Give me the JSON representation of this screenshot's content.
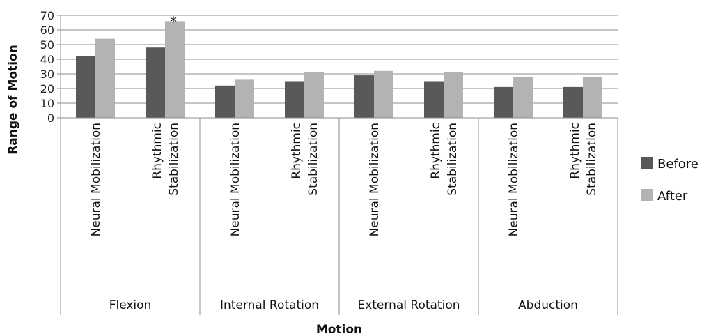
{
  "chart_data": {
    "type": "bar",
    "xlabel": "Motion",
    "ylabel": "Range of Motion",
    "ylim": [
      0,
      70
    ],
    "yticks": [
      0,
      10,
      20,
      30,
      40,
      50,
      60,
      70
    ],
    "grid": true,
    "legend_position": "right",
    "groups": [
      {
        "name": "Flexion",
        "categories": [
          "Neural Mobilization",
          "Rhythmic Stabilization"
        ]
      },
      {
        "name": "Internal Rotation",
        "categories": [
          "Neural Mobilization",
          "Rhythmic Stabilization"
        ]
      },
      {
        "name": "External Rotation",
        "categories": [
          "Neural Mobilization",
          "Rhythmic Stabilization"
        ]
      },
      {
        "name": "Abduction",
        "categories": [
          "Neural Mobilization",
          "Rhythmic Stabilization"
        ]
      }
    ],
    "category_label_lines": {
      "Neural Mobilization": [
        "Neural Mobilization"
      ],
      "Rhythmic Stabilization": [
        "Rhythmic",
        "Stabilization"
      ]
    },
    "series": [
      {
        "name": "Before",
        "color": "#595959",
        "values": [
          42,
          48,
          22,
          25,
          29,
          25,
          21,
          21
        ]
      },
      {
        "name": "After",
        "color": "#b3b3b3",
        "values": [
          54,
          66,
          26,
          31,
          32,
          31,
          28,
          28
        ]
      }
    ],
    "annotations": [
      {
        "text": "*",
        "category_index": 1,
        "series": "After"
      }
    ]
  }
}
